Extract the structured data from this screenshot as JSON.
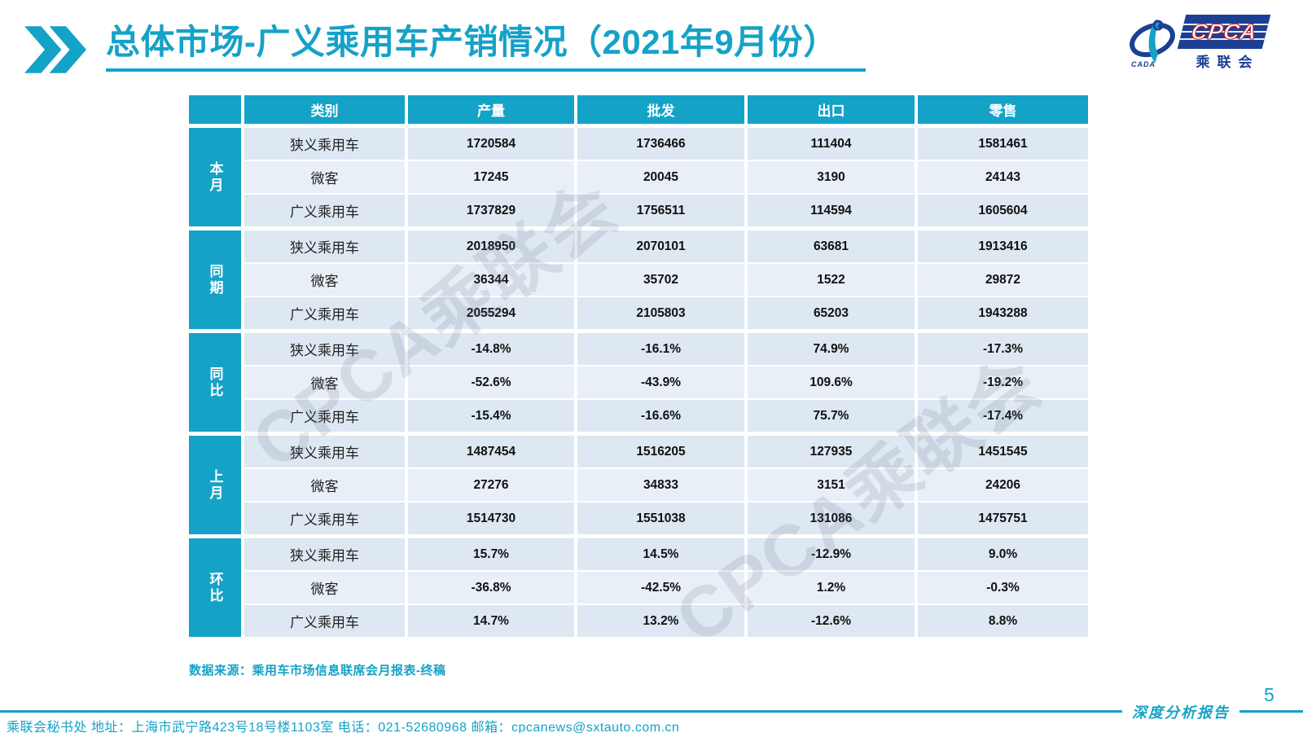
{
  "header": {
    "title": "总体市场-广义乘用车产销情况（2021年9月份）",
    "chevron_icon": "double-right-chevron"
  },
  "logo": {
    "cpca_text": "CPCA",
    "cada_text": "CADA",
    "chinese_name": "乘联会"
  },
  "watermark_text": "CPCA乘联会",
  "table": {
    "column_headers": [
      "类别",
      "产量",
      "批发",
      "出口",
      "零售"
    ],
    "groups": [
      {
        "label": "本月",
        "rows": [
          {
            "category": "狭义乘用车",
            "values": [
              "1720584",
              "1736466",
              "111404",
              "1581461"
            ]
          },
          {
            "category": "微客",
            "values": [
              "17245",
              "20045",
              "3190",
              "24143"
            ]
          },
          {
            "category": "广义乘用车",
            "values": [
              "1737829",
              "1756511",
              "114594",
              "1605604"
            ]
          }
        ]
      },
      {
        "label": "同期",
        "rows": [
          {
            "category": "狭义乘用车",
            "values": [
              "2018950",
              "2070101",
              "63681",
              "1913416"
            ]
          },
          {
            "category": "微客",
            "values": [
              "36344",
              "35702",
              "1522",
              "29872"
            ]
          },
          {
            "category": "广义乘用车",
            "values": [
              "2055294",
              "2105803",
              "65203",
              "1943288"
            ]
          }
        ]
      },
      {
        "label": "同比",
        "rows": [
          {
            "category": "狭义乘用车",
            "values": [
              "-14.8%",
              "-16.1%",
              "74.9%",
              "-17.3%"
            ]
          },
          {
            "category": "微客",
            "values": [
              "-52.6%",
              "-43.9%",
              "109.6%",
              "-19.2%"
            ]
          },
          {
            "category": "广义乘用车",
            "values": [
              "-15.4%",
              "-16.6%",
              "75.7%",
              "-17.4%"
            ]
          }
        ]
      },
      {
        "label": "上月",
        "rows": [
          {
            "category": "狭义乘用车",
            "values": [
              "1487454",
              "1516205",
              "127935",
              "1451545"
            ]
          },
          {
            "category": "微客",
            "values": [
              "27276",
              "34833",
              "3151",
              "24206"
            ]
          },
          {
            "category": "广义乘用车",
            "values": [
              "1514730",
              "1551038",
              "131086",
              "1475751"
            ]
          }
        ]
      },
      {
        "label": "环比",
        "rows": [
          {
            "category": "狭义乘用车",
            "values": [
              "15.7%",
              "14.5%",
              "-12.9%",
              "9.0%"
            ]
          },
          {
            "category": "微客",
            "values": [
              "-36.8%",
              "-42.5%",
              "1.2%",
              "-0.3%"
            ]
          },
          {
            "category": "广义乘用车",
            "values": [
              "14.7%",
              "13.2%",
              "-12.6%",
              "8.8%"
            ]
          }
        ]
      }
    ]
  },
  "source_note": "数据来源：乘用车市场信息联席会月报表-终稿",
  "footer": {
    "secretariat_info": "乘联会秘书处  地址：上海市武宁路423号18号楼1103室  电话：021-52680968  邮箱：cpcanews@sxtauto.com.cn",
    "report_type": "深度分析报告",
    "page_number": "5"
  },
  "colors": {
    "brand_teal": "#15A2C7",
    "logo_blue": "#1C3F94",
    "logo_red": "#C4232B",
    "row_dark": "#DDE8F2",
    "row_light": "#E9EFF7"
  }
}
